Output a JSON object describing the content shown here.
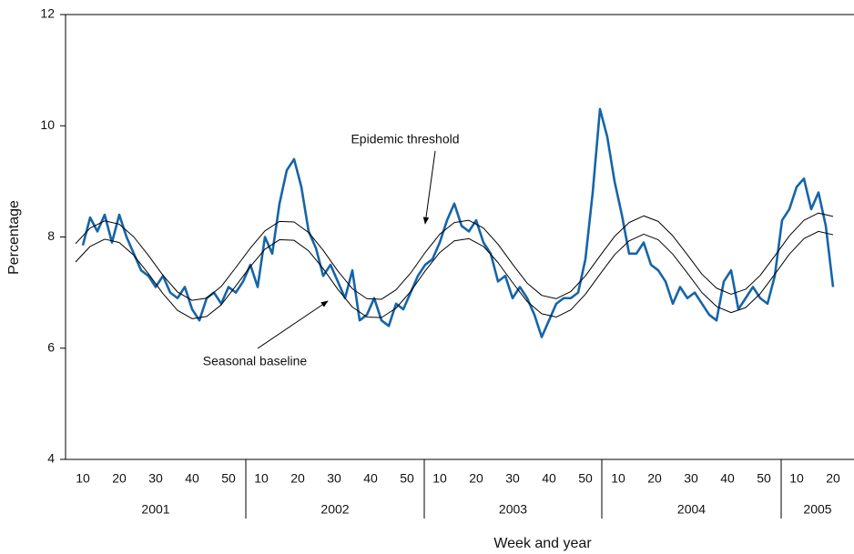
{
  "chart_data": {
    "type": "line",
    "x_label": "Week and year",
    "y_label": "Percentage",
    "xlim": [
      5.25,
      221.75
    ],
    "ylim": [
      4,
      12
    ],
    "yticks": [
      4,
      6,
      8,
      10,
      12
    ],
    "xticks": [
      10,
      20,
      30,
      40,
      50,
      {
        "value": 59,
        "label": "10"
      },
      {
        "value": 69,
        "label": "20"
      },
      {
        "value": 79,
        "label": "30"
      },
      {
        "value": 89,
        "label": "40"
      },
      {
        "value": 99,
        "label": "50"
      },
      {
        "value": 108,
        "label": "10"
      },
      {
        "value": 118,
        "label": "20"
      },
      {
        "value": 128,
        "label": "30"
      },
      {
        "value": 138,
        "label": "40"
      },
      {
        "value": 148,
        "label": "50"
      },
      {
        "value": 157,
        "label": "10"
      },
      {
        "value": 167,
        "label": "20"
      },
      {
        "value": 177,
        "label": "30"
      },
      {
        "value": 187,
        "label": "40"
      },
      {
        "value": 197,
        "label": "50"
      },
      {
        "value": 206,
        "label": "10"
      },
      {
        "value": 216,
        "label": "20"
      }
    ],
    "x_groups": [
      {
        "label": "2001",
        "start": 5.25,
        "end": 54.75
      },
      {
        "label": "2002",
        "start": 54.75,
        "end": 103.75
      },
      {
        "label": "2003",
        "start": 103.75,
        "end": 152.5
      },
      {
        "label": "2004",
        "start": 152.5,
        "end": 201.75
      },
      {
        "label": "2005",
        "start": 201.75,
        "end": 221.75
      }
    ],
    "grid": false,
    "series": [
      {
        "color": "#1565a8",
        "width": 2.6,
        "x": [
          10,
          12,
          14,
          16,
          18,
          20,
          22,
          24,
          26,
          28,
          30,
          32,
          34,
          36,
          38,
          40,
          42,
          44,
          46,
          48,
          50,
          52,
          54,
          56,
          58,
          60,
          62,
          64,
          66,
          68,
          70,
          72,
          74,
          76,
          78,
          80,
          82,
          84,
          86,
          88,
          90,
          92,
          94,
          96,
          98,
          100,
          102,
          104,
          106,
          108,
          110,
          112,
          114,
          116,
          118,
          120,
          122,
          124,
          126,
          128,
          130,
          132,
          134,
          136,
          138,
          140,
          142,
          144,
          146,
          148,
          150,
          152,
          154,
          156,
          158,
          160,
          162,
          164,
          166,
          168,
          170,
          172,
          174,
          176,
          178,
          180,
          182,
          184,
          186,
          188,
          190,
          192,
          194,
          196,
          198,
          200,
          202,
          204,
          206,
          208,
          210,
          212,
          214,
          216
        ],
        "values": [
          7.85,
          8.35,
          8.1,
          8.4,
          7.9,
          8.4,
          8.0,
          7.7,
          7.4,
          7.3,
          7.1,
          7.3,
          7.0,
          6.9,
          7.1,
          6.7,
          6.5,
          6.9,
          7.0,
          6.8,
          7.1,
          7.0,
          7.2,
          7.5,
          7.1,
          8.0,
          7.7,
          8.6,
          9.2,
          9.4,
          8.9,
          8.1,
          7.8,
          7.3,
          7.5,
          7.2,
          6.9,
          7.4,
          6.5,
          6.6,
          6.9,
          6.5,
          6.4,
          6.8,
          6.7,
          7.0,
          7.3,
          7.5,
          7.6,
          7.9,
          8.3,
          8.6,
          8.2,
          8.1,
          8.3,
          7.9,
          7.7,
          7.2,
          7.3,
          6.9,
          7.1,
          6.9,
          6.6,
          6.2,
          6.5,
          6.8,
          6.9,
          6.9,
          7.0,
          7.6,
          8.8,
          10.3,
          9.8,
          9.0,
          8.4,
          7.7,
          7.7,
          7.9,
          7.5,
          7.4,
          7.2,
          6.8,
          7.1,
          6.9,
          7.0,
          6.8,
          6.6,
          6.5,
          7.2,
          7.4,
          6.7,
          6.9,
          7.1,
          6.9,
          6.8,
          7.3,
          8.3,
          8.5,
          8.9,
          9.05,
          8.5,
          8.8,
          8.2,
          7.1
        ]
      },
      {
        "color": "#000000",
        "width": 1,
        "x": [
          8,
          12,
          16,
          20,
          24,
          28,
          32,
          36,
          40,
          44,
          48,
          52,
          56,
          60,
          64,
          68,
          72,
          76,
          80,
          84,
          88,
          92,
          96,
          100,
          104,
          108,
          112,
          116,
          120,
          124,
          128,
          132,
          136,
          140,
          144,
          148,
          152,
          156,
          160,
          164,
          168,
          172,
          176,
          180,
          184,
          188,
          192,
          196,
          200,
          204,
          208,
          212,
          216
        ],
        "values": [
          7.88,
          8.16,
          8.29,
          8.23,
          8.0,
          7.67,
          7.31,
          7.01,
          6.86,
          6.9,
          7.11,
          7.45,
          7.8,
          8.11,
          8.28,
          8.27,
          8.08,
          7.76,
          7.39,
          7.07,
          6.89,
          6.88,
          7.05,
          7.35,
          7.72,
          8.05,
          8.26,
          8.3,
          8.16,
          7.87,
          7.51,
          7.17,
          6.95,
          6.89,
          7.02,
          7.3,
          7.66,
          8.01,
          8.26,
          8.38,
          8.28,
          8.02,
          7.68,
          7.33,
          7.08,
          6.97,
          7.06,
          7.31,
          7.66,
          8.02,
          8.3,
          8.43,
          8.37
        ]
      },
      {
        "color": "#000000",
        "width": 1,
        "x": [
          8,
          12,
          16,
          20,
          24,
          28,
          32,
          36,
          40,
          44,
          48,
          52,
          56,
          60,
          64,
          68,
          72,
          76,
          80,
          84,
          88,
          92,
          96,
          100,
          104,
          108,
          112,
          116,
          120,
          124,
          128,
          132,
          136,
          140,
          144,
          148,
          152,
          156,
          160,
          164,
          168,
          172,
          176,
          180,
          184,
          188,
          192,
          196,
          200,
          204,
          208,
          212,
          216
        ],
        "values": [
          7.55,
          7.83,
          7.96,
          7.9,
          7.67,
          7.34,
          6.98,
          6.68,
          6.53,
          6.57,
          6.78,
          7.12,
          7.47,
          7.78,
          7.95,
          7.94,
          7.75,
          7.43,
          7.06,
          6.74,
          6.56,
          6.55,
          6.72,
          7.02,
          7.39,
          7.72,
          7.93,
          7.97,
          7.83,
          7.54,
          7.18,
          6.84,
          6.62,
          6.56,
          6.69,
          6.97,
          7.33,
          7.68,
          7.93,
          8.05,
          7.95,
          7.69,
          7.35,
          7.0,
          6.75,
          6.64,
          6.73,
          6.98,
          7.33,
          7.69,
          7.97,
          8.1,
          8.04
        ]
      }
    ],
    "annotations": [
      {
        "text": "Epidemic threshold"
      },
      {
        "text": "Seasonal baseline"
      }
    ]
  }
}
